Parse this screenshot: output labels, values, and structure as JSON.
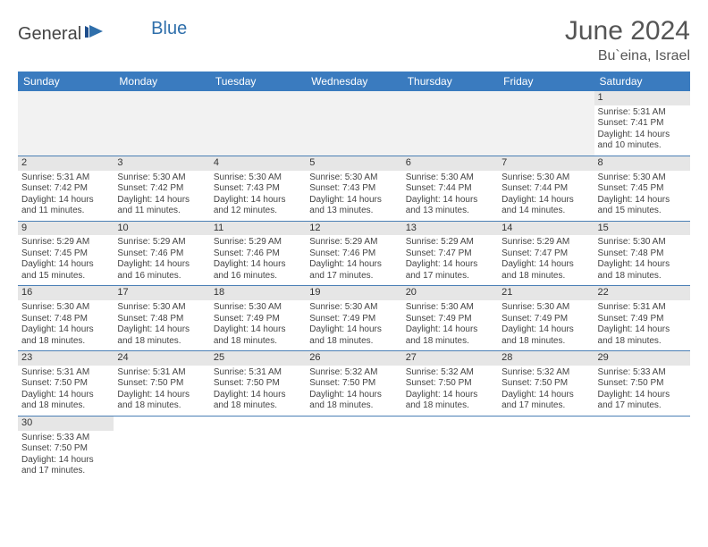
{
  "logo": {
    "text1": "General",
    "text2": "Blue"
  },
  "title": "June 2024",
  "location": "Bu`eina, Israel",
  "header_bg": "#3a7bbf",
  "border_color": "#4a7fb5",
  "daynum_bg": "#e6e6e6",
  "empty_bg": "#f2f2f2",
  "weekdays": [
    "Sunday",
    "Monday",
    "Tuesday",
    "Wednesday",
    "Thursday",
    "Friday",
    "Saturday"
  ],
  "days": [
    null,
    null,
    null,
    null,
    null,
    null,
    {
      "n": "1",
      "sr": "5:31 AM",
      "ss": "7:41 PM",
      "dl": "14 hours and 10 minutes."
    },
    {
      "n": "2",
      "sr": "5:31 AM",
      "ss": "7:42 PM",
      "dl": "14 hours and 11 minutes."
    },
    {
      "n": "3",
      "sr": "5:30 AM",
      "ss": "7:42 PM",
      "dl": "14 hours and 11 minutes."
    },
    {
      "n": "4",
      "sr": "5:30 AM",
      "ss": "7:43 PM",
      "dl": "14 hours and 12 minutes."
    },
    {
      "n": "5",
      "sr": "5:30 AM",
      "ss": "7:43 PM",
      "dl": "14 hours and 13 minutes."
    },
    {
      "n": "6",
      "sr": "5:30 AM",
      "ss": "7:44 PM",
      "dl": "14 hours and 13 minutes."
    },
    {
      "n": "7",
      "sr": "5:30 AM",
      "ss": "7:44 PM",
      "dl": "14 hours and 14 minutes."
    },
    {
      "n": "8",
      "sr": "5:30 AM",
      "ss": "7:45 PM",
      "dl": "14 hours and 15 minutes."
    },
    {
      "n": "9",
      "sr": "5:29 AM",
      "ss": "7:45 PM",
      "dl": "14 hours and 15 minutes."
    },
    {
      "n": "10",
      "sr": "5:29 AM",
      "ss": "7:46 PM",
      "dl": "14 hours and 16 minutes."
    },
    {
      "n": "11",
      "sr": "5:29 AM",
      "ss": "7:46 PM",
      "dl": "14 hours and 16 minutes."
    },
    {
      "n": "12",
      "sr": "5:29 AM",
      "ss": "7:46 PM",
      "dl": "14 hours and 17 minutes."
    },
    {
      "n": "13",
      "sr": "5:29 AM",
      "ss": "7:47 PM",
      "dl": "14 hours and 17 minutes."
    },
    {
      "n": "14",
      "sr": "5:29 AM",
      "ss": "7:47 PM",
      "dl": "14 hours and 18 minutes."
    },
    {
      "n": "15",
      "sr": "5:30 AM",
      "ss": "7:48 PM",
      "dl": "14 hours and 18 minutes."
    },
    {
      "n": "16",
      "sr": "5:30 AM",
      "ss": "7:48 PM",
      "dl": "14 hours and 18 minutes."
    },
    {
      "n": "17",
      "sr": "5:30 AM",
      "ss": "7:48 PM",
      "dl": "14 hours and 18 minutes."
    },
    {
      "n": "18",
      "sr": "5:30 AM",
      "ss": "7:49 PM",
      "dl": "14 hours and 18 minutes."
    },
    {
      "n": "19",
      "sr": "5:30 AM",
      "ss": "7:49 PM",
      "dl": "14 hours and 18 minutes."
    },
    {
      "n": "20",
      "sr": "5:30 AM",
      "ss": "7:49 PM",
      "dl": "14 hours and 18 minutes."
    },
    {
      "n": "21",
      "sr": "5:30 AM",
      "ss": "7:49 PM",
      "dl": "14 hours and 18 minutes."
    },
    {
      "n": "22",
      "sr": "5:31 AM",
      "ss": "7:49 PM",
      "dl": "14 hours and 18 minutes."
    },
    {
      "n": "23",
      "sr": "5:31 AM",
      "ss": "7:50 PM",
      "dl": "14 hours and 18 minutes."
    },
    {
      "n": "24",
      "sr": "5:31 AM",
      "ss": "7:50 PM",
      "dl": "14 hours and 18 minutes."
    },
    {
      "n": "25",
      "sr": "5:31 AM",
      "ss": "7:50 PM",
      "dl": "14 hours and 18 minutes."
    },
    {
      "n": "26",
      "sr": "5:32 AM",
      "ss": "7:50 PM",
      "dl": "14 hours and 18 minutes."
    },
    {
      "n": "27",
      "sr": "5:32 AM",
      "ss": "7:50 PM",
      "dl": "14 hours and 18 minutes."
    },
    {
      "n": "28",
      "sr": "5:32 AM",
      "ss": "7:50 PM",
      "dl": "14 hours and 17 minutes."
    },
    {
      "n": "29",
      "sr": "5:33 AM",
      "ss": "7:50 PM",
      "dl": "14 hours and 17 minutes."
    },
    {
      "n": "30",
      "sr": "5:33 AM",
      "ss": "7:50 PM",
      "dl": "14 hours and 17 minutes."
    },
    null,
    null,
    null,
    null,
    null,
    null
  ],
  "labels": {
    "sunrise": "Sunrise:",
    "sunset": "Sunset:",
    "daylight": "Daylight:"
  }
}
